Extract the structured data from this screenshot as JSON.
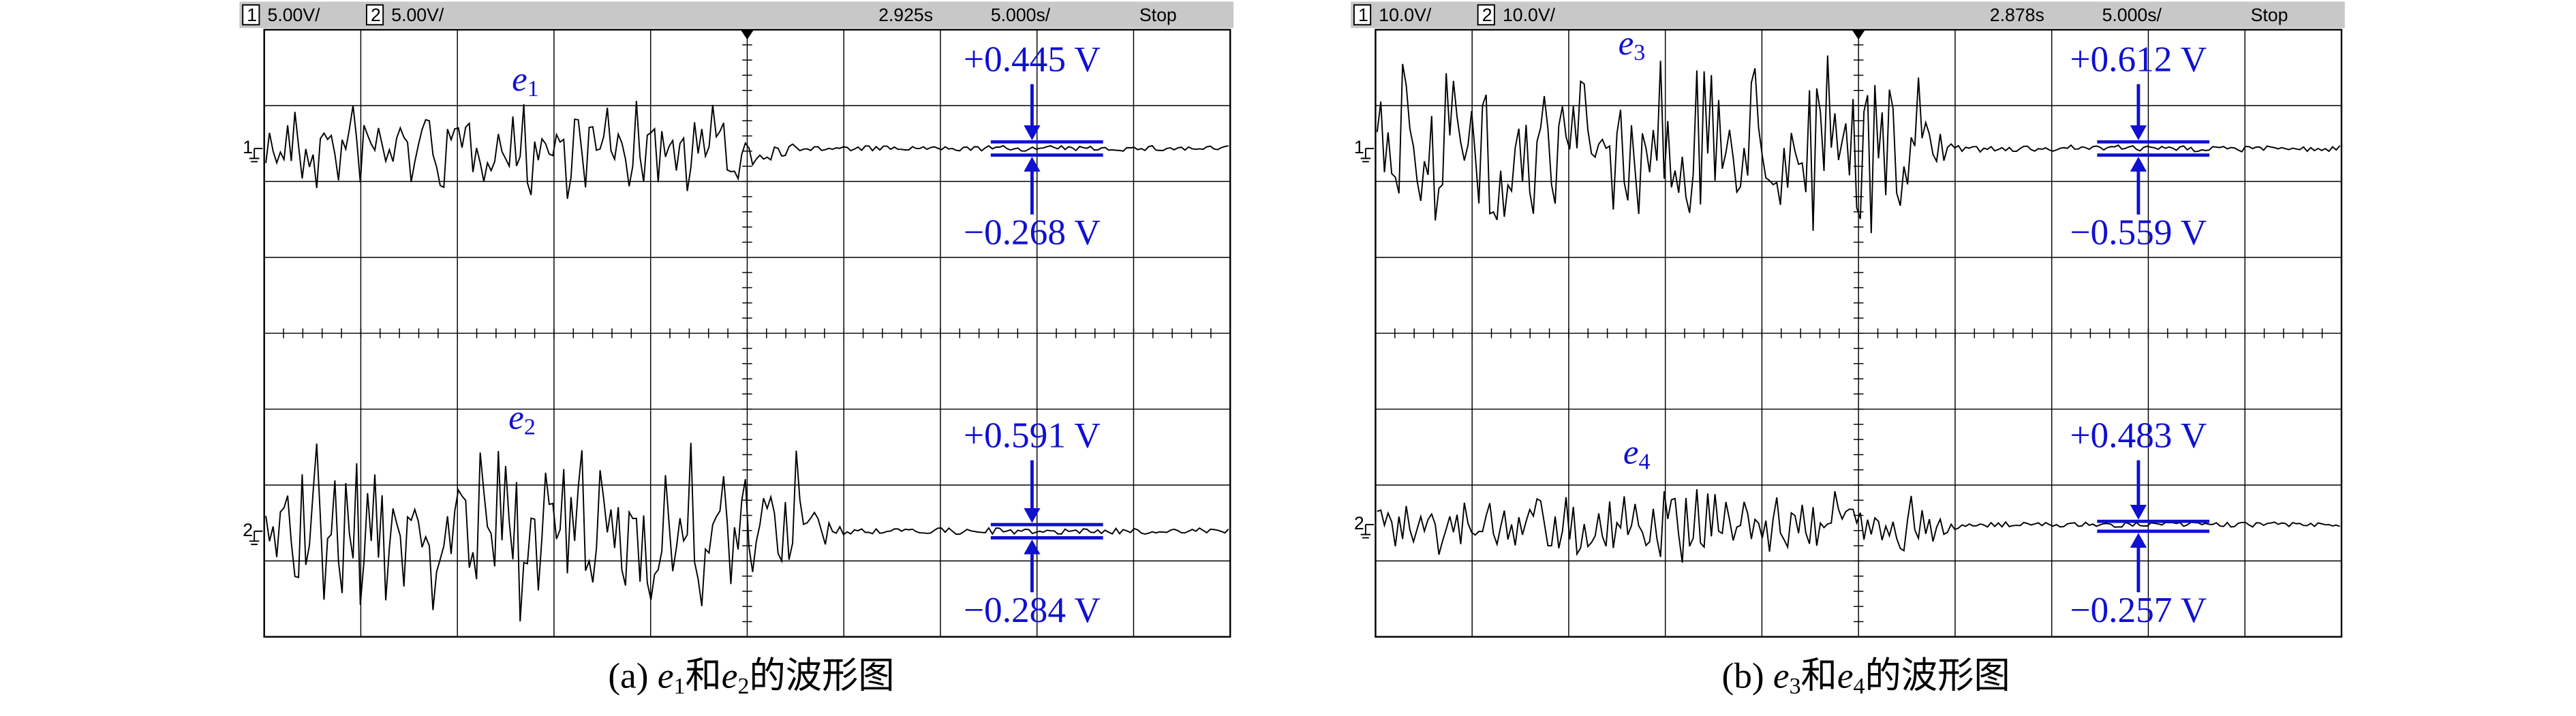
{
  "panels": [
    {
      "header": {
        "ch1": "1",
        "ch1_scale": "5.00V/",
        "ch2": "2",
        "ch2_scale": "5.00V/",
        "time": "2.925s",
        "timebase": "5.000s/",
        "status": "Stop"
      },
      "traces": [
        {
          "label": "e",
          "subscript": "1",
          "max": "+0.445 V",
          "min": "−0.268 V"
        },
        {
          "label": "e",
          "subscript": "2",
          "max": "+0.591 V",
          "min": "−0.284 V"
        }
      ],
      "caption": {
        "prefix": "(a) ",
        "a": "e",
        "a_sub": "1",
        "and": "和",
        "b": "e",
        "b_sub": "2",
        "suffix": "的波形图"
      }
    },
    {
      "header": {
        "ch1": "1",
        "ch1_scale": "10.0V/",
        "ch2": "2",
        "ch2_scale": "10.0V/",
        "time": "2.878s",
        "timebase": "5.000s/",
        "status": "Stop"
      },
      "traces": [
        {
          "label": "e",
          "subscript": "3",
          "max": "+0.612 V",
          "min": "−0.559 V"
        },
        {
          "label": "e",
          "subscript": "4",
          "max": "+0.483 V",
          "min": "−0.257 V"
        }
      ],
      "caption": {
        "prefix": "(b) ",
        "a": "e",
        "a_sub": "3",
        "and": "和",
        "b": "e",
        "b_sub": "4",
        "suffix": "的波形图"
      }
    }
  ]
}
